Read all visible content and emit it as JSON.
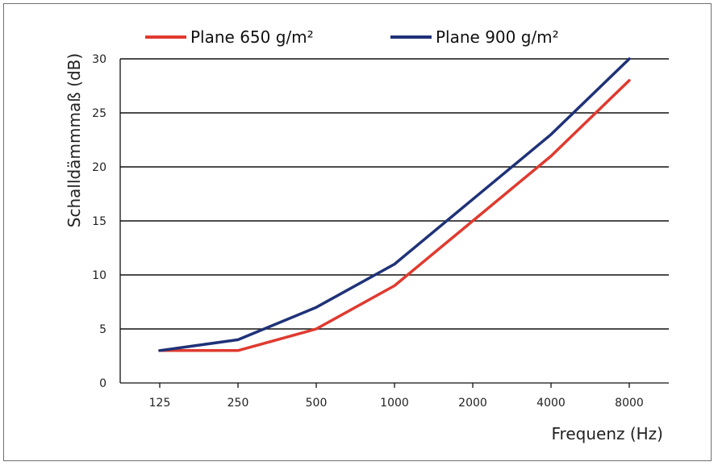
{
  "chart_data": {
    "type": "line",
    "title": "",
    "categories": [
      "125",
      "250",
      "500",
      "1000",
      "2000",
      "4000",
      "8000"
    ],
    "xlabel": "Frequenz (Hz)",
    "ylabel": "Schalldämmmaß (dB)",
    "ylim": [
      0,
      30
    ],
    "yticks": [
      "0",
      "5",
      "10",
      "15",
      "20",
      "25",
      "30"
    ],
    "grid": "horizontal",
    "legend_position": "top",
    "series": [
      {
        "name": "Plane 650 g/m²",
        "color": "#e03a2f",
        "values": [
          3,
          3,
          5,
          9,
          15,
          21,
          28
        ]
      },
      {
        "name": "Plane 900 g/m²",
        "color": "#1f3278",
        "values": [
          3,
          4,
          7,
          11,
          17,
          23,
          30
        ]
      }
    ]
  }
}
